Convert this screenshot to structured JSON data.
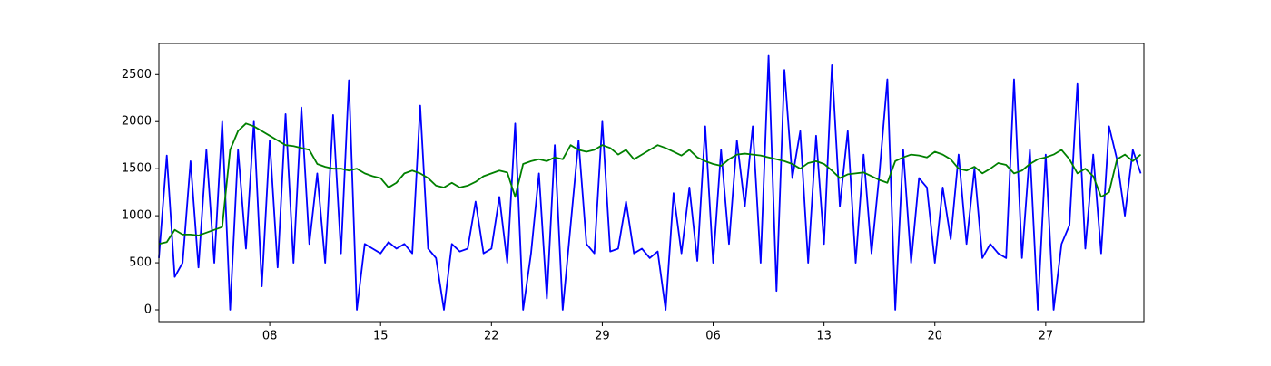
{
  "chart_data": {
    "type": "line",
    "x": [
      0,
      0.5,
      1,
      1.5,
      2,
      2.5,
      3,
      3.5,
      4,
      4.5,
      5,
      5.5,
      6,
      6.5,
      7,
      7.5,
      8,
      8.5,
      9,
      9.5,
      10,
      10.5,
      11,
      11.5,
      12,
      12.5,
      13,
      13.5,
      14,
      14.5,
      15,
      15.5,
      16,
      16.5,
      17,
      17.5,
      18,
      18.5,
      19,
      19.5,
      20,
      20.5,
      21,
      21.5,
      22,
      22.5,
      23,
      23.5,
      24,
      24.5,
      25,
      25.5,
      26,
      26.5,
      27,
      27.5,
      28,
      28.5,
      29,
      29.5,
      30,
      30.5,
      31,
      31.5,
      32,
      32.5,
      33,
      33.5,
      34,
      34.5,
      35,
      35.5,
      36,
      36.5,
      37,
      37.5,
      38,
      38.5,
      39,
      39.5,
      40,
      40.5,
      41,
      41.5,
      42,
      42.5,
      43,
      43.5,
      44,
      44.5,
      45,
      45.5,
      46,
      46.5,
      47,
      47.5,
      48,
      48.5,
      49,
      49.5,
      50,
      50.5,
      51,
      51.5,
      52,
      52.5,
      53,
      53.5,
      54,
      54.5,
      55,
      55.5,
      56,
      56.5,
      57,
      57.5,
      58,
      58.5,
      59,
      59.5,
      60,
      60.5,
      61,
      61.5,
      62
    ],
    "series": [
      {
        "color": "#0000ff",
        "values": [
          550,
          1640,
          350,
          500,
          1580,
          450,
          1700,
          500,
          2000,
          0,
          1700,
          650,
          2000,
          250,
          1800,
          450,
          2080,
          500,
          2150,
          700,
          1450,
          500,
          2070,
          600,
          2440,
          0,
          700,
          650,
          600,
          720,
          650,
          700,
          600,
          2170,
          650,
          550,
          0,
          700,
          620,
          650,
          1150,
          600,
          650,
          1200,
          500,
          1980,
          0,
          600,
          1450,
          120,
          1750,
          0,
          900,
          1800,
          700,
          600,
          2000,
          620,
          650,
          1150,
          600,
          650,
          550,
          620,
          0,
          1240,
          600,
          1300,
          520,
          1950,
          500,
          1700,
          700,
          1800,
          1100,
          1950,
          500,
          2700,
          200,
          2550,
          1400,
          1900,
          500,
          1850,
          700,
          2600,
          1100,
          1900,
          500,
          1650,
          600,
          1450,
          2450,
          0,
          1700,
          500,
          1400,
          1300,
          500,
          1300,
          750,
          1650,
          700,
          1500,
          550,
          700,
          600,
          550,
          2450,
          550,
          1700,
          0,
          1650,
          0,
          700,
          900,
          2400,
          650,
          1650,
          600,
          1950,
          1600,
          1000,
          1700,
          1450
        ]
      },
      {
        "color": "#008000",
        "values": [
          700,
          720,
          850,
          800,
          800,
          790,
          820,
          850,
          880,
          1700,
          1900,
          1980,
          1950,
          1900,
          1850,
          1800,
          1750,
          1740,
          1720,
          1700,
          1550,
          1520,
          1500,
          1500,
          1480,
          1500,
          1450,
          1420,
          1400,
          1300,
          1350,
          1450,
          1480,
          1450,
          1400,
          1320,
          1300,
          1350,
          1300,
          1320,
          1360,
          1420,
          1450,
          1480,
          1460,
          1200,
          1550,
          1580,
          1600,
          1580,
          1620,
          1600,
          1750,
          1700,
          1680,
          1700,
          1750,
          1720,
          1650,
          1700,
          1600,
          1650,
          1700,
          1750,
          1720,
          1680,
          1640,
          1700,
          1620,
          1580,
          1550,
          1530,
          1600,
          1650,
          1660,
          1650,
          1640,
          1620,
          1600,
          1580,
          1550,
          1500,
          1560,
          1580,
          1550,
          1480,
          1400,
          1440,
          1450,
          1460,
          1420,
          1380,
          1350,
          1580,
          1620,
          1650,
          1640,
          1620,
          1680,
          1650,
          1600,
          1500,
          1480,
          1520,
          1450,
          1500,
          1560,
          1540,
          1450,
          1480,
          1550,
          1600,
          1620,
          1650,
          1700,
          1600,
          1450,
          1500,
          1420,
          1200,
          1250,
          1600,
          1650,
          1580,
          1650
        ]
      }
    ],
    "xlim": [
      0,
      62.2
    ],
    "xticks": [
      {
        "value": 7,
        "label": "08"
      },
      {
        "value": 14,
        "label": "15"
      },
      {
        "value": 21,
        "label": "22"
      },
      {
        "value": 28,
        "label": "29"
      },
      {
        "value": 35,
        "label": "06"
      },
      {
        "value": 42,
        "label": "13"
      },
      {
        "value": 49,
        "label": "20"
      },
      {
        "value": 56,
        "label": "27"
      }
    ],
    "ylim": [
      -125,
      2830
    ],
    "yticks": [
      0,
      500,
      1000,
      1500,
      2000,
      2500
    ]
  }
}
